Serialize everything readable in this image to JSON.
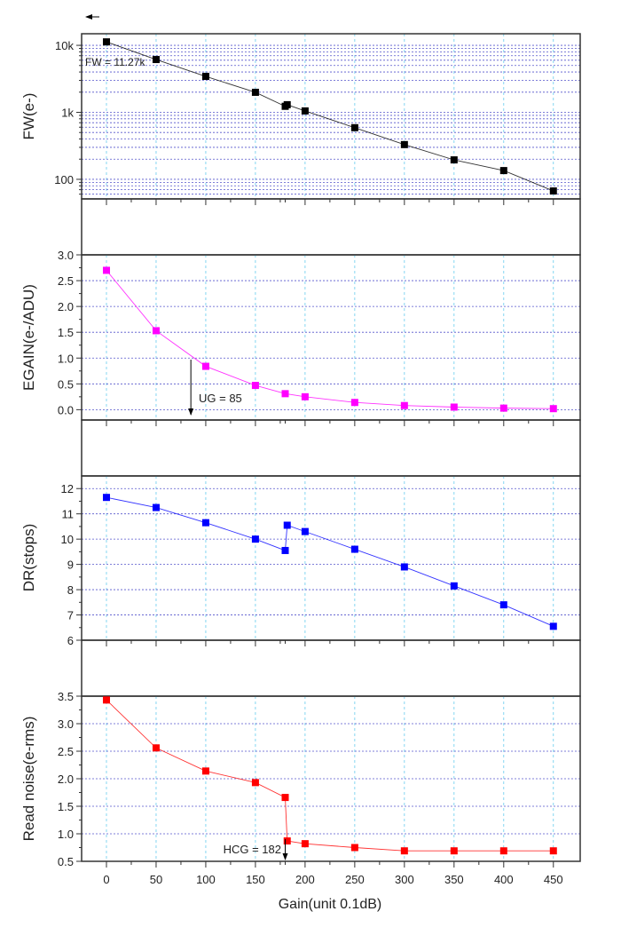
{
  "chart_data": [
    {
      "type": "line",
      "ylabel": "FW(e-)",
      "yscale": "log",
      "ylim": [
        51,
        14900
      ],
      "yticks": [
        100,
        1000,
        10000
      ],
      "ytick_labels": [
        "100",
        "1k",
        "10k"
      ],
      "x": [
        0,
        50,
        100,
        150,
        180,
        182,
        200,
        250,
        300,
        350,
        400,
        450
      ],
      "values": [
        11270,
        6140,
        3440,
        1990,
        1230,
        1300,
        1050,
        590,
        330,
        195,
        135,
        67
      ],
      "color": "#000000",
      "annotation": {
        "text": "FW = 11.27k",
        "x": 0,
        "y": 11270
      }
    },
    {
      "type": "line",
      "ylabel": "EGAIN(e-/ADU)",
      "ylim": [
        -0.2,
        3.0
      ],
      "yticks": [
        0.0,
        0.5,
        1.0,
        1.5,
        2.0,
        2.5,
        3.0
      ],
      "ytick_labels": [
        "0.0",
        "0.5",
        "1.0",
        "1.5",
        "2.0",
        "2.5",
        "3.0"
      ],
      "x": [
        0,
        50,
        100,
        150,
        180,
        200,
        250,
        300,
        350,
        400,
        450
      ],
      "values": [
        2.7,
        1.53,
        0.84,
        0.47,
        0.31,
        0.25,
        0.14,
        0.08,
        0.05,
        0.03,
        0.02
      ],
      "color": "#ff00ff",
      "annotation": {
        "text": "UG = 85",
        "x": 85,
        "y": 1.0
      }
    },
    {
      "type": "line",
      "ylabel": "DR(stops)",
      "ylim": [
        6,
        12.5
      ],
      "yticks": [
        6,
        7,
        8,
        9,
        10,
        11,
        12
      ],
      "ytick_labels": [
        "6",
        "7",
        "8",
        "9",
        "10",
        "11",
        "12"
      ],
      "x": [
        0,
        50,
        100,
        150,
        180,
        182,
        200,
        250,
        300,
        350,
        400,
        450
      ],
      "values": [
        11.65,
        11.25,
        10.65,
        10.0,
        9.55,
        10.55,
        10.3,
        9.6,
        8.9,
        8.15,
        7.4,
        6.55
      ],
      "color": "#0000ff"
    },
    {
      "type": "line",
      "ylabel": "Read noise(e-rms)",
      "xlabel": "Gain(unit 0.1dB)",
      "ylim": [
        0.5,
        3.5
      ],
      "xlim": [
        -25,
        477
      ],
      "yticks": [
        0.5,
        1.0,
        1.5,
        2.0,
        2.5,
        3.0,
        3.5
      ],
      "ytick_labels": [
        "0.5",
        "1.0",
        "1.5",
        "2.0",
        "2.5",
        "3.0",
        "3.5"
      ],
      "xticks": [
        0,
        50,
        100,
        150,
        200,
        250,
        300,
        350,
        400,
        450
      ],
      "xtick_labels": [
        "0",
        "50",
        "100",
        "150",
        "200",
        "250",
        "300",
        "350",
        "400",
        "450"
      ],
      "x": [
        0,
        50,
        100,
        150,
        180,
        182,
        200,
        250,
        300,
        350,
        400,
        450
      ],
      "values": [
        3.43,
        2.56,
        2.14,
        1.93,
        1.66,
        0.87,
        0.82,
        0.75,
        0.69,
        0.69,
        0.69,
        0.69
      ],
      "color": "#ff0000",
      "annotation": {
        "text": "HCG = 182",
        "x": 182,
        "y": 0.87
      }
    }
  ],
  "grid": {
    "vertical_color": "#66ccee",
    "horizontal_color": "#5555cc",
    "visible": true
  }
}
